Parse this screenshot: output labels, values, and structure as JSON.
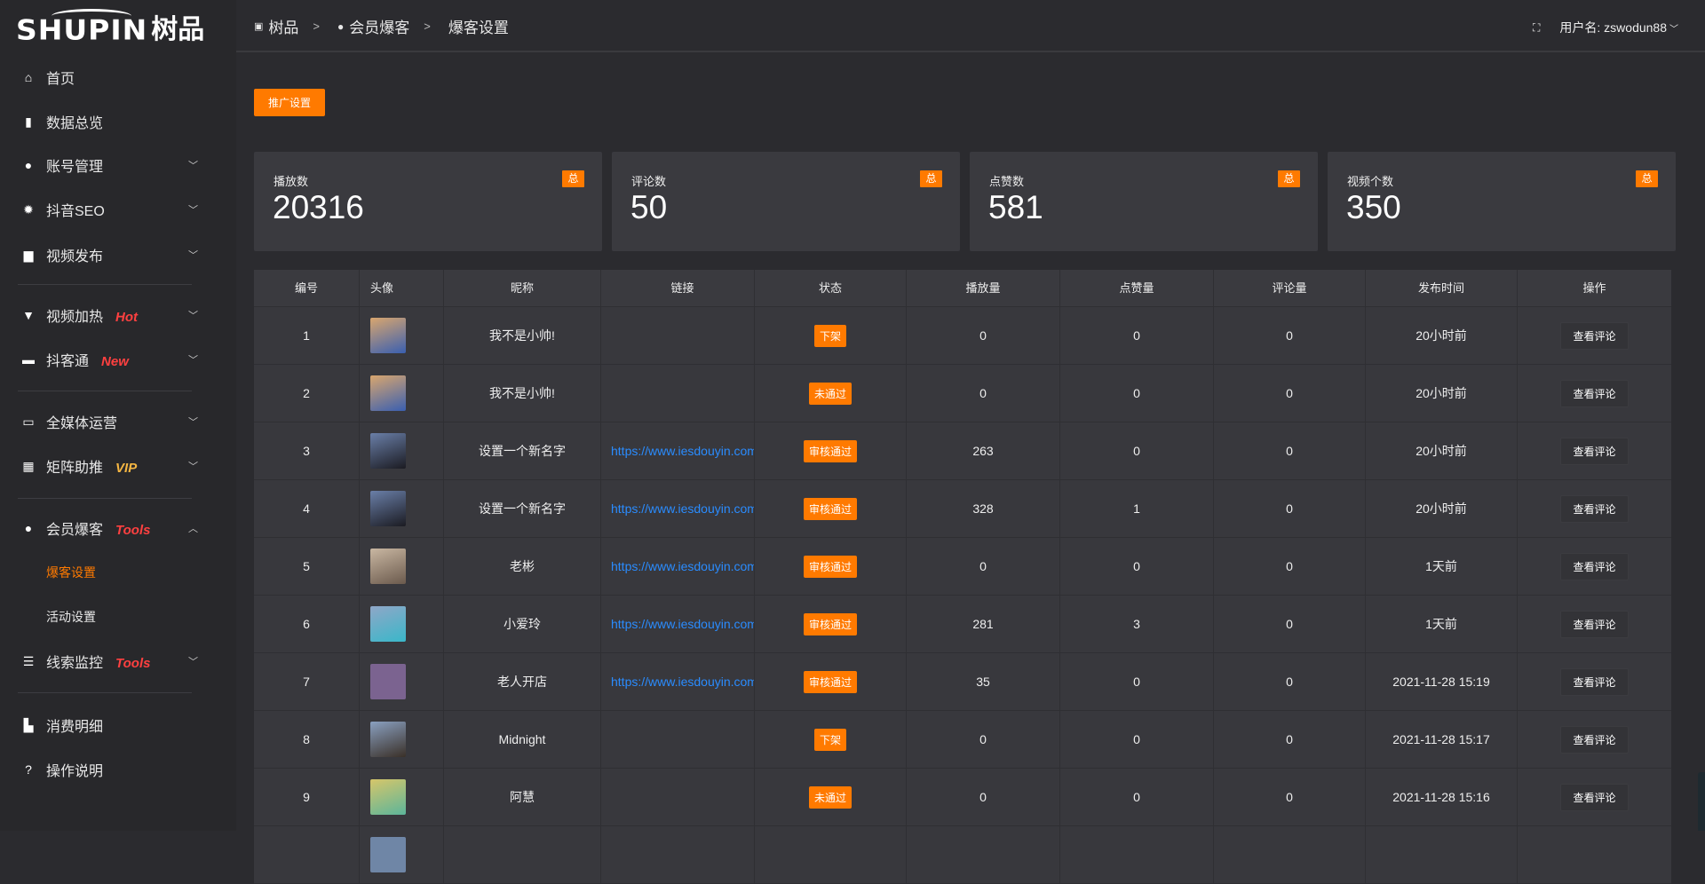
{
  "logo": {
    "en": "SHUPIN",
    "cn": "树品"
  },
  "sidebar": {
    "items": [
      {
        "label": "首页",
        "icon": "home-icon",
        "glyph": "⌂"
      },
      {
        "label": "数据总览",
        "icon": "bar-chart-icon",
        "glyph": "▮"
      },
      {
        "label": "账号管理",
        "icon": "user-icon",
        "glyph": "●",
        "chev": "﹀"
      },
      {
        "label": "抖音SEO",
        "icon": "gear-icon",
        "glyph": "✹",
        "chev": "﹀"
      },
      {
        "label": "视频发布",
        "icon": "camera-icon",
        "glyph": "▆",
        "chev": "﹀"
      },
      {
        "label": "视频加热",
        "icon": "flag-icon",
        "glyph": "▼",
        "tag": "Hot",
        "chev": "﹀"
      },
      {
        "label": "抖客通",
        "icon": "chat-icon",
        "glyph": "▬",
        "tag": "New",
        "chev": "﹀"
      },
      {
        "label": "全媒体运营",
        "icon": "monitor-icon",
        "glyph": "▭",
        "chev": "﹀"
      },
      {
        "label": "矩阵助推",
        "icon": "grid-icon",
        "glyph": "▦",
        "tag": "VIP",
        "chev": "﹀"
      },
      {
        "label": "会员爆客",
        "icon": "user-icon",
        "glyph": "●",
        "tag": "Tools",
        "chev": "︿"
      },
      {
        "label": "线索监控",
        "icon": "sliders-icon",
        "glyph": "☰",
        "tag": "Tools",
        "chev": "﹀"
      },
      {
        "label": "消费明细",
        "icon": "wallet-icon",
        "glyph": "▙"
      },
      {
        "label": "操作说明",
        "icon": "question-icon",
        "glyph": "?"
      }
    ],
    "subitems": [
      {
        "label": "爆客设置",
        "active": true
      },
      {
        "label": "活动设置"
      }
    ]
  },
  "breadcrumb": [
    {
      "label": "树品",
      "icon": "image-icon"
    },
    {
      "label": "会员爆客",
      "icon": "user-icon"
    },
    {
      "label": "爆客设置"
    }
  ],
  "header": {
    "username": "用户名: zswodun88",
    "fullscreen_icon": "fullscreen-icon"
  },
  "promo_button": "推广设置",
  "stats": [
    {
      "title": "播放数",
      "value": "20316",
      "badge": "总"
    },
    {
      "title": "评论数",
      "value": "50",
      "badge": "总"
    },
    {
      "title": "点赞数",
      "value": "581",
      "badge": "总"
    },
    {
      "title": "视频个数",
      "value": "350",
      "badge": "总"
    }
  ],
  "accent": "#ff7a00",
  "table": {
    "columns": [
      "编号",
      "头像",
      "昵称",
      "链接",
      "状态",
      "播放量",
      "点赞量",
      "评论量",
      "发布时间",
      "操作"
    ],
    "action_label": "查看评论",
    "rows": [
      {
        "id": "1",
        "name": "我不是小帅!",
        "link": "",
        "status": "下架",
        "plays": "0",
        "likes": "0",
        "comments": "0",
        "time": "20小时前",
        "avatar": [
          "#d9a66e",
          "#3a5fb0"
        ]
      },
      {
        "id": "2",
        "name": "我不是小帅!",
        "link": "",
        "status": "未通过",
        "plays": "0",
        "likes": "0",
        "comments": "0",
        "time": "20小时前",
        "avatar": [
          "#d9a66e",
          "#3a5fb0"
        ]
      },
      {
        "id": "3",
        "name": "设置一个新名字",
        "link": "https://www.iesdouyin.com",
        "status": "审核通过",
        "plays": "263",
        "likes": "0",
        "comments": "0",
        "time": "20小时前",
        "avatar": [
          "#6a7fa8",
          "#1b1b22"
        ]
      },
      {
        "id": "4",
        "name": "设置一个新名字",
        "link": "https://www.iesdouyin.com",
        "status": "审核通过",
        "plays": "328",
        "likes": "1",
        "comments": "0",
        "time": "20小时前",
        "avatar": [
          "#6a7fa8",
          "#1b1b22"
        ]
      },
      {
        "id": "5",
        "name": "老彬",
        "link": "https://www.iesdouyin.com",
        "status": "审核通过",
        "plays": "0",
        "likes": "0",
        "comments": "0",
        "time": "1天前",
        "avatar": [
          "#c9b7a2",
          "#6b5a4d"
        ]
      },
      {
        "id": "6",
        "name": "小爱玲",
        "link": "https://www.iesdouyin.com",
        "status": "审核通过",
        "plays": "281",
        "likes": "3",
        "comments": "0",
        "time": "1天前",
        "avatar": [
          "#8fa7c8",
          "#3ab7c9"
        ]
      },
      {
        "id": "7",
        "name": "老人开店",
        "link": "https://www.iesdouyin.com",
        "status": "审核通过",
        "plays": "35",
        "likes": "0",
        "comments": "0",
        "time": "2021-11-28 15:19",
        "avatar": [
          "#7b6390",
          "#7b6390"
        ]
      },
      {
        "id": "8",
        "name": "Midnight",
        "link": "",
        "status": "下架",
        "plays": "0",
        "likes": "0",
        "comments": "0",
        "time": "2021-11-28 15:17",
        "avatar": [
          "#8aa0c0",
          "#3a3028"
        ]
      },
      {
        "id": "9",
        "name": "阿慧",
        "link": "",
        "status": "未通过",
        "plays": "0",
        "likes": "0",
        "comments": "0",
        "time": "2021-11-28 15:16",
        "avatar": [
          "#d6c66a",
          "#5cb59a"
        ]
      },
      {
        "id": "",
        "name": "",
        "link": "",
        "status": "",
        "plays": "",
        "likes": "",
        "comments": "",
        "time": "",
        "avatar": [
          "#6f86a6",
          "#6f86a6"
        ]
      }
    ]
  }
}
